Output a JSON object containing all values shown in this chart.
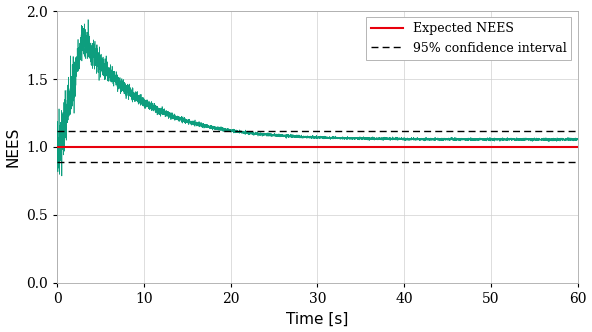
{
  "title": "",
  "xlabel": "Time [s]",
  "ylabel": "NEES",
  "xlim": [
    0,
    60
  ],
  "ylim": [
    0.0,
    2.0
  ],
  "xticks": [
    0,
    10,
    20,
    30,
    40,
    50,
    60
  ],
  "yticks": [
    0.0,
    0.5,
    1.0,
    1.5,
    2.0
  ],
  "expected_nees": 1.0,
  "ci_upper": 1.115,
  "ci_lower": 0.888,
  "expected_nees_color": "#e8000d",
  "ci_color": "#000000",
  "nees_color": "#009977",
  "legend_labels": [
    "Expected NEES",
    "95% confidence interval"
  ],
  "peak_time": 3.0,
  "peak_value": 1.8,
  "steady_value": 1.055,
  "background_color": "#ffffff",
  "grid_color": "#d0d0d0"
}
